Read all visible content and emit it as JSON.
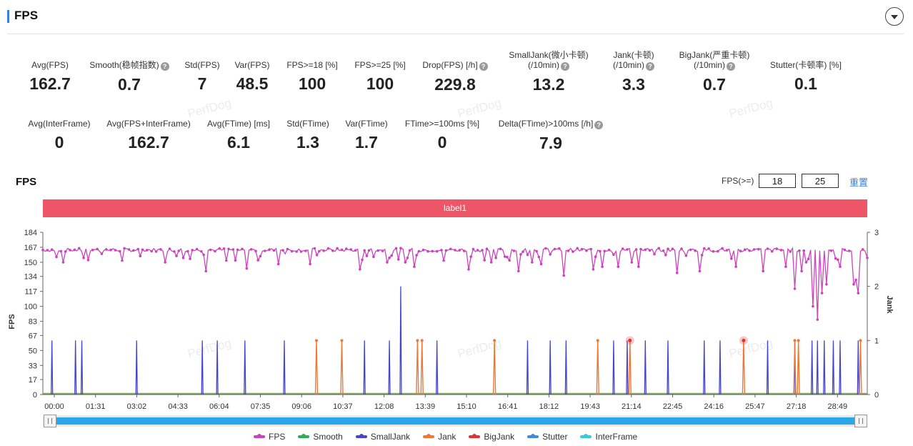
{
  "header": {
    "title": "FPS"
  },
  "stats_row1": [
    {
      "label": "Avg(FPS)",
      "value": "162.7",
      "help": false,
      "cx": 70
    },
    {
      "label": "Smooth(稳帧指数)",
      "value": "0.7",
      "help": true,
      "cx": 181
    },
    {
      "label": "Std(FPS)",
      "value": "7",
      "help": false,
      "cx": 283
    },
    {
      "label": "Var(FPS)",
      "value": "48.5",
      "help": false,
      "cx": 353
    },
    {
      "label": "FPS>=18 [%]",
      "value": "100",
      "help": false,
      "cx": 437
    },
    {
      "label": "FPS>=25 [%]",
      "value": "100",
      "help": false,
      "cx": 532
    },
    {
      "label": "Drop(FPS) [/h]",
      "value": "229.8",
      "help": true,
      "cx": 637
    },
    {
      "label": "SmallJank(微小卡顿)",
      "label2": "(/10min)",
      "value": "13.2",
      "help": true,
      "cx": 768
    },
    {
      "label": "Jank(卡顿)",
      "label2": "(/10min)",
      "value": "3.3",
      "help": true,
      "cx": 887
    },
    {
      "label": "BigJank(严重卡顿)",
      "label2": "(/10min)",
      "value": "0.7",
      "help": true,
      "cx": 1000
    },
    {
      "label": "Stutter(卡顿率) [%]",
      "value": "0.1",
      "help": false,
      "cx": 1128
    }
  ],
  "stats_row2": [
    {
      "label": "Avg(InterFrame)",
      "value": "0",
      "help": false,
      "cx": 83
    },
    {
      "label": "Avg(FPS+InterFrame)",
      "value": "162.7",
      "help": false,
      "cx": 208
    },
    {
      "label": "Avg(FTime) [ms]",
      "value": "6.1",
      "help": false,
      "cx": 334
    },
    {
      "label": "Std(FTime)",
      "value": "1.3",
      "help": false,
      "cx": 431
    },
    {
      "label": "Var(FTime)",
      "value": "1.7",
      "help": false,
      "cx": 513
    },
    {
      "label": "FTime>=100ms [%]",
      "value": "0",
      "help": false,
      "cx": 619
    },
    {
      "label": "Delta(FTime)>100ms [/h]",
      "value": "7.9",
      "help": true,
      "cx": 771
    }
  ],
  "watermark": "PerfDog",
  "fps_section": {
    "title": "FPS",
    "threshold_label": "FPS(>=)",
    "threshold_1": "18",
    "threshold_2": "25",
    "reset_label": "重置"
  },
  "label_band": "label1",
  "chart_data": {
    "type": "line",
    "y_left": {
      "label": "FPS",
      "ticks": [
        "0",
        "17",
        "33",
        "50",
        "67",
        "83",
        "100",
        "117",
        "134",
        "150",
        "167",
        "184"
      ],
      "range": [
        0,
        184
      ]
    },
    "y_right": {
      "label": "Jank",
      "ticks": [
        "0",
        "1",
        "2",
        "3"
      ],
      "range": [
        0,
        3
      ]
    },
    "x_ticks": [
      "00:00",
      "01:31",
      "03:02",
      "04:33",
      "06:04",
      "07:35",
      "09:06",
      "10:37",
      "12:08",
      "13:39",
      "15:10",
      "16:41",
      "18:12",
      "19:43",
      "21:14",
      "22:45",
      "24:16",
      "25:47",
      "27:18",
      "28:49"
    ],
    "x_range_seconds": [
      0,
      1820
    ],
    "fps_baseline": 164,
    "fps_dips": [
      [
        45,
        150
      ],
      [
        90,
        155
      ],
      [
        175,
        152
      ],
      [
        270,
        150
      ],
      [
        360,
        140
      ],
      [
        405,
        152
      ],
      [
        450,
        143
      ],
      [
        520,
        148
      ],
      [
        590,
        148
      ],
      [
        700,
        142
      ],
      [
        760,
        150
      ],
      [
        800,
        150
      ],
      [
        820,
        145
      ],
      [
        885,
        152
      ],
      [
        940,
        142
      ],
      [
        990,
        150
      ],
      [
        1000,
        155
      ],
      [
        1050,
        140
      ],
      [
        1080,
        150
      ],
      [
        1100,
        148
      ],
      [
        1150,
        135
      ],
      [
        1215,
        142
      ],
      [
        1235,
        145
      ],
      [
        1270,
        145
      ],
      [
        1300,
        150
      ],
      [
        1315,
        145
      ],
      [
        1400,
        138
      ],
      [
        1450,
        140
      ],
      [
        1530,
        145
      ],
      [
        1590,
        140
      ],
      [
        1640,
        145
      ],
      [
        1660,
        120
      ],
      [
        1675,
        140
      ],
      [
        1685,
        150
      ],
      [
        1700,
        100
      ],
      [
        1708,
        85
      ],
      [
        1720,
        115
      ],
      [
        1730,
        125
      ],
      [
        1760,
        145
      ],
      [
        1790,
        125
      ],
      [
        1795,
        130
      ],
      [
        1800,
        115
      ]
    ],
    "small_jank_t": [
      20,
      72,
      86,
      207,
      352,
      385,
      446,
      533,
      710,
      765,
      870,
      1070,
      1120,
      1155,
      1260,
      1290,
      1330,
      1380,
      1460,
      1495,
      1600,
      1660,
      1698,
      1710,
      1725,
      1745,
      1760,
      1800
    ],
    "small_jank_tall": [
      [
        790,
        2.0
      ]
    ],
    "jank_t": [
      604,
      660,
      827,
      837,
      997,
      1225,
      1660,
      1668,
      1805
    ],
    "big_jank_t": [
      1296,
      1547
    ],
    "legend": [
      {
        "name": "FPS",
        "color": "#cc44bb"
      },
      {
        "name": "Smooth",
        "color": "#33aa55"
      },
      {
        "name": "SmallJank",
        "color": "#4444cc"
      },
      {
        "name": "Jank",
        "color": "#ee7733"
      },
      {
        "name": "BigJank",
        "color": "#dd3333"
      },
      {
        "name": "Stutter",
        "color": "#4488dd"
      },
      {
        "name": "InterFrame",
        "color": "#33ccdd"
      }
    ]
  }
}
